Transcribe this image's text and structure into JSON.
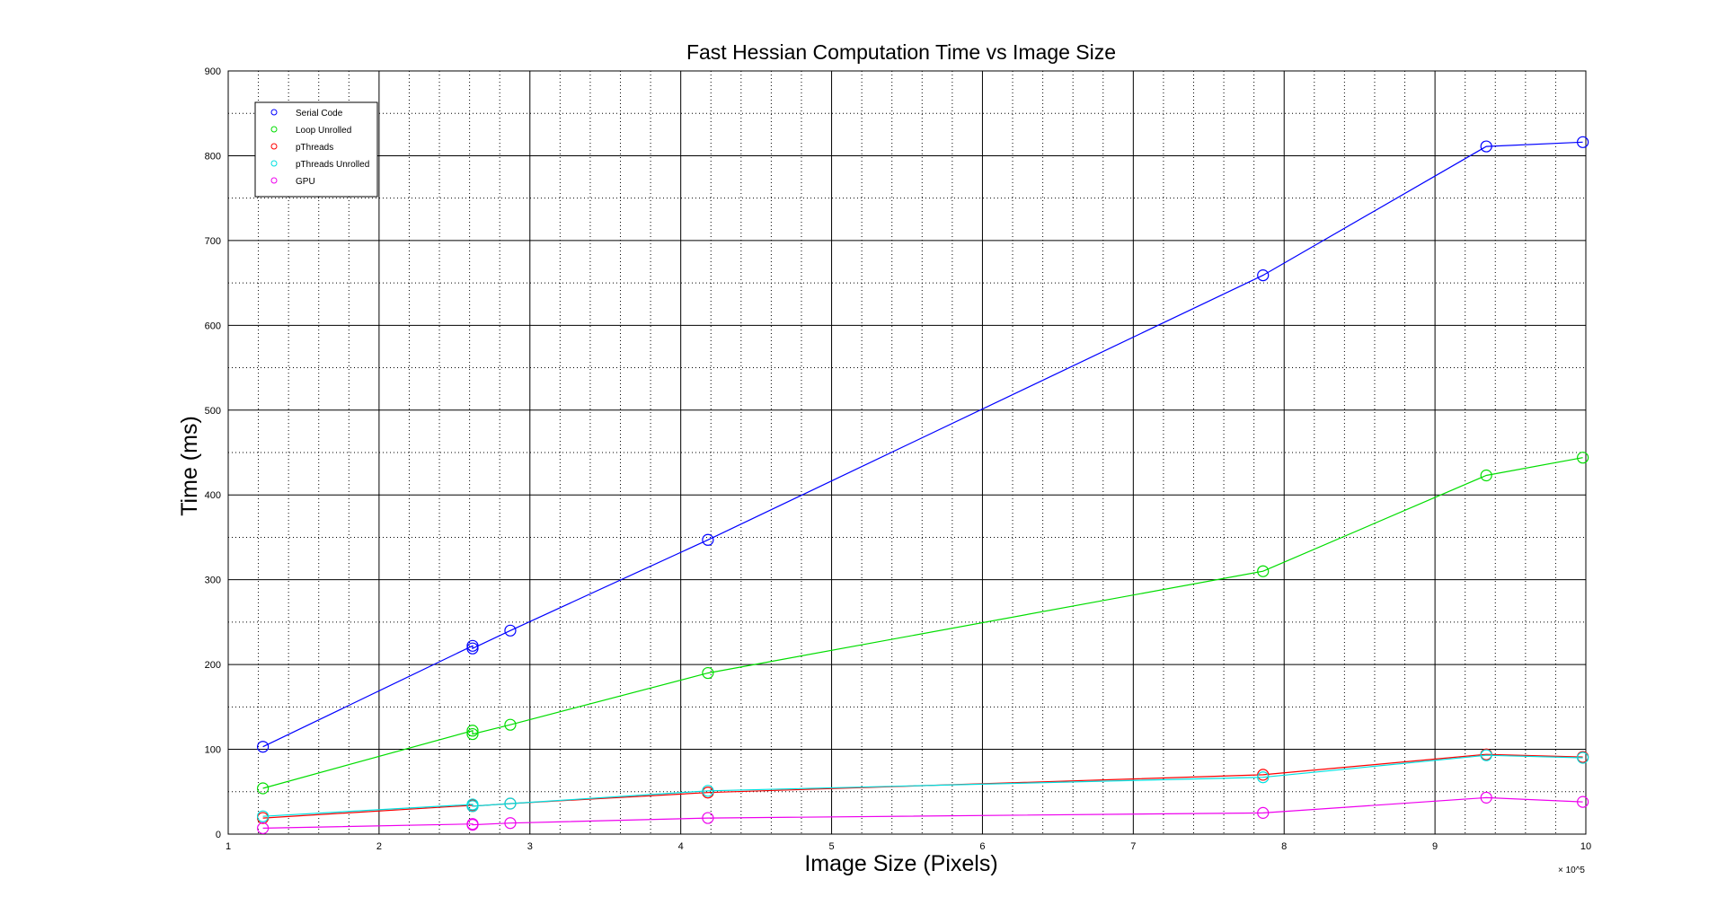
{
  "chart_data": {
    "type": "line",
    "title": "Fast Hessian Computation Time vs Image Size",
    "xlabel": "Image Size (Pixels)",
    "ylabel": "Time (ms)",
    "x_exponent": "× 10^5",
    "xlim": [
      1,
      10
    ],
    "ylim": [
      0,
      900
    ],
    "x_ticks": [
      1,
      2,
      3,
      4,
      5,
      6,
      7,
      8,
      9,
      10
    ],
    "y_ticks": [
      0,
      100,
      200,
      300,
      400,
      500,
      600,
      700,
      800,
      900
    ],
    "grid": true,
    "minor_grid": true,
    "legend_position": "top-left",
    "series": [
      {
        "name": "Serial Code",
        "color": "#0000ff",
        "x": [
          1.23,
          2.62,
          2.62,
          2.87,
          4.18,
          7.86,
          9.34,
          9.98
        ],
        "y": [
          103,
          222,
          219,
          240,
          347,
          659,
          811,
          816
        ]
      },
      {
        "name": "Loop Unrolled",
        "color": "#00dd00",
        "x": [
          1.23,
          2.62,
          2.62,
          2.87,
          4.18,
          7.86,
          9.34,
          9.98
        ],
        "y": [
          54,
          122,
          118,
          129,
          190,
          310,
          423,
          444
        ]
      },
      {
        "name": "pThreads",
        "color": "#ff0000",
        "x": [
          1.23,
          2.62,
          2.62,
          2.87,
          4.18,
          7.86,
          9.34,
          9.98
        ],
        "y": [
          19,
          34,
          33,
          36,
          49,
          70,
          94,
          91
        ]
      },
      {
        "name": "pThreads Unrolled",
        "color": "#00e0e0",
        "x": [
          1.23,
          2.62,
          2.62,
          2.87,
          4.18,
          7.86,
          9.34,
          9.98
        ],
        "y": [
          21,
          35,
          33,
          36,
          51,
          67,
          93,
          90
        ]
      },
      {
        "name": "GPU",
        "color": "#ee00ee",
        "x": [
          1.23,
          2.62,
          2.62,
          2.87,
          4.18,
          7.86,
          9.34,
          9.98
        ],
        "y": [
          7,
          12,
          11,
          13,
          19,
          25,
          43,
          38
        ]
      }
    ]
  }
}
